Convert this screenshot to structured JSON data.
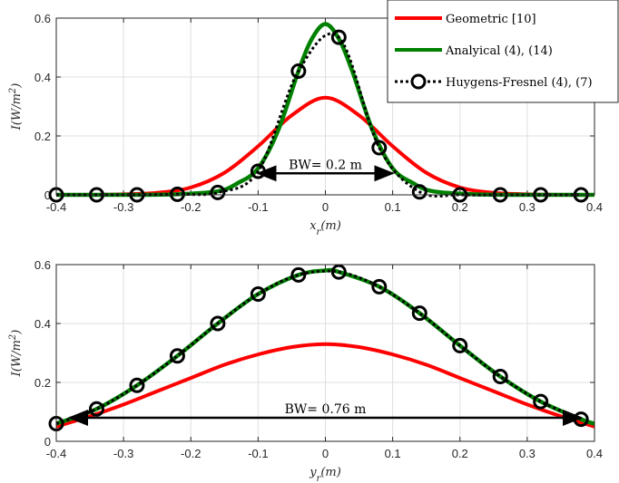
{
  "colors": {
    "geometric": "#ff0000",
    "analytical": "#008000",
    "huygens": "#000000",
    "grid": "#dfdfdf",
    "axis": "#262626"
  },
  "legend": {
    "entries": [
      "Geometric [10]",
      "Analyical (4), (14)",
      "Huygens-Fresnel (4), (7)"
    ],
    "placement": "top-right"
  },
  "chart_data": [
    {
      "type": "line",
      "xlabel": "x_r(m)",
      "ylabel": "I(W/m^2)",
      "xlim": [
        -0.4,
        0.4
      ],
      "ylim": [
        0,
        0.6
      ],
      "xticks": [
        "-0.4",
        "-0.3",
        "-0.2",
        "-0.1",
        "0",
        "0.1",
        "0.2",
        "0.3",
        "0.4"
      ],
      "yticks": [
        "0",
        "0.2",
        "0.4",
        "0.6"
      ],
      "grid": true,
      "annotation": {
        "text": "BW= 0.2 m",
        "from": -0.1,
        "to": 0.1,
        "y": 0.073
      },
      "series": [
        {
          "name": "Geometric [10]",
          "style": "line",
          "color": "#ff0000",
          "x": [
            -0.4,
            -0.35,
            -0.3,
            -0.25,
            -0.2,
            -0.15,
            -0.1,
            -0.05,
            0,
            0.05,
            0.1,
            0.15,
            0.2,
            0.25,
            0.3,
            0.35,
            0.4
          ],
          "y": [
            0.0,
            0.0,
            0.002,
            0.007,
            0.025,
            0.075,
            0.165,
            0.27,
            0.33,
            0.27,
            0.165,
            0.075,
            0.025,
            0.007,
            0.002,
            0.0,
            0.0
          ]
        },
        {
          "name": "Analyical (4), (14)",
          "style": "line",
          "color": "#008000",
          "x": [
            -0.4,
            -0.3,
            -0.22,
            -0.16,
            -0.13,
            -0.1,
            -0.07,
            -0.04,
            -0.02,
            0,
            0.02,
            0.04,
            0.07,
            0.1,
            0.13,
            0.16,
            0.22,
            0.3,
            0.4
          ],
          "y": [
            0.0,
            0.0,
            0.002,
            0.012,
            0.04,
            0.09,
            0.22,
            0.42,
            0.53,
            0.58,
            0.53,
            0.42,
            0.22,
            0.09,
            0.04,
            0.012,
            0.002,
            0.0,
            0.0
          ]
        },
        {
          "name": "Huygens-Fresnel (4), (7)",
          "style": "markers",
          "color": "#000000",
          "x": [
            -0.4,
            -0.34,
            -0.28,
            -0.22,
            -0.16,
            -0.1,
            -0.04,
            0.02,
            0.08,
            0.14,
            0.2,
            0.26,
            0.32,
            0.38
          ],
          "y": [
            0.0,
            0.0,
            0.0,
            0.002,
            0.008,
            0.08,
            0.42,
            0.535,
            0.16,
            0.01,
            0.0,
            0.0,
            0.0,
            0.0
          ]
        }
      ]
    },
    {
      "type": "line",
      "xlabel": "y_r(m)",
      "ylabel": "I(W/m^2)",
      "xlim": [
        -0.4,
        0.4
      ],
      "ylim": [
        0,
        0.6
      ],
      "xticks": [
        "-0.4",
        "-0.3",
        "-0.2",
        "-0.1",
        "0",
        "0.1",
        "0.2",
        "0.3",
        "0.4"
      ],
      "yticks": [
        "0",
        "0.2",
        "0.4",
        "0.6"
      ],
      "grid": true,
      "annotation": {
        "text": "BW= 0.76 m",
        "from": -0.38,
        "to": 0.38,
        "y": 0.08
      },
      "series": [
        {
          "name": "Geometric [10]",
          "style": "line",
          "color": "#ff0000",
          "x": [
            -0.4,
            -0.35,
            -0.3,
            -0.25,
            -0.2,
            -0.15,
            -0.1,
            -0.05,
            0,
            0.05,
            0.1,
            0.15,
            0.2,
            0.25,
            0.3,
            0.35,
            0.4
          ],
          "y": [
            0.05,
            0.085,
            0.125,
            0.17,
            0.215,
            0.26,
            0.295,
            0.32,
            0.33,
            0.32,
            0.295,
            0.26,
            0.215,
            0.17,
            0.125,
            0.085,
            0.05
          ],
          "smooth": true
        },
        {
          "name": "Analyical (4), (14)",
          "style": "line",
          "color": "#008000",
          "x": [
            -0.4,
            -0.34,
            -0.28,
            -0.22,
            -0.16,
            -0.1,
            -0.04,
            0,
            0.02,
            0.08,
            0.14,
            0.2,
            0.26,
            0.32,
            0.38,
            0.4
          ],
          "y": [
            0.06,
            0.11,
            0.19,
            0.29,
            0.4,
            0.5,
            0.565,
            0.58,
            0.575,
            0.525,
            0.435,
            0.325,
            0.22,
            0.135,
            0.075,
            0.06
          ],
          "smooth": true
        },
        {
          "name": "Huygens-Fresnel (4), (7)",
          "style": "markers",
          "color": "#000000",
          "x": [
            -0.4,
            -0.34,
            -0.28,
            -0.22,
            -0.16,
            -0.1,
            -0.04,
            0.02,
            0.08,
            0.14,
            0.2,
            0.26,
            0.32,
            0.38
          ],
          "y": [
            0.06,
            0.11,
            0.19,
            0.29,
            0.4,
            0.5,
            0.565,
            0.575,
            0.525,
            0.435,
            0.325,
            0.22,
            0.135,
            0.075
          ]
        }
      ]
    }
  ]
}
